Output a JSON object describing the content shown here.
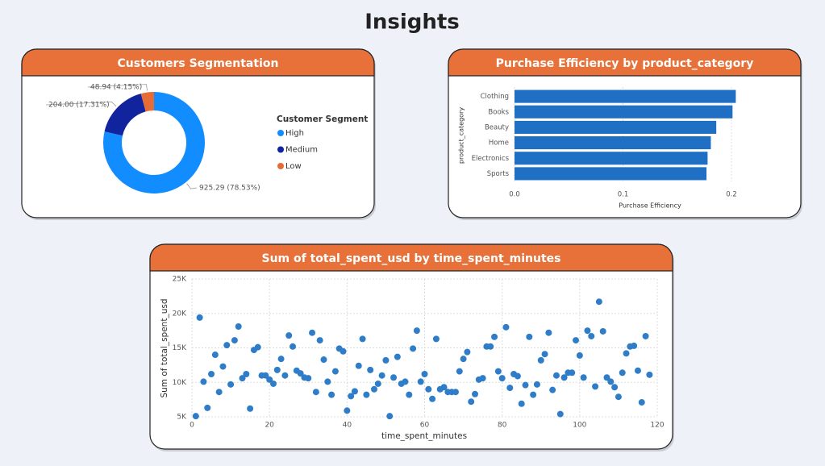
{
  "title": "Insights",
  "chart_data": [
    {
      "type": "pie",
      "title": "Customers Segmentation",
      "legend_title": "Customer Segment",
      "categories": [
        "High",
        "Medium",
        "Low"
      ],
      "values": [
        925.29,
        204.0,
        48.94
      ],
      "value_labels": [
        "925.29 (78.53%)",
        "204.00 (17.31%)",
        "48.94 (4.15%)"
      ],
      "colors": [
        "#118dff",
        "#12239e",
        "#e66c37"
      ],
      "donut": true,
      "legend": "right"
    },
    {
      "type": "bar",
      "orientation": "horizontal",
      "title": "Purchase Efficiency by product_category",
      "categories": [
        "Clothing",
        "Books",
        "Beauty",
        "Home",
        "Electronics",
        "Sports"
      ],
      "values": [
        0.204,
        0.201,
        0.186,
        0.181,
        0.178,
        0.177
      ],
      "color": "#1f6fc5",
      "xlim": [
        0,
        0.205
      ],
      "xticks": [
        {
          "value": 0,
          "label": "0.0"
        },
        0.1,
        0.2
      ],
      "x_label": "Purchase Efficiency",
      "y_label": "product_category",
      "grid": true
    },
    {
      "type": "scatter",
      "title": "Sum of total_spent_usd by time_spent_minutes",
      "x_label": "time_spent_minutes",
      "y_label": "Sum of total_spent_usd",
      "color": "#2f7dc8",
      "x": [
        1,
        2,
        3,
        4,
        5,
        6,
        7,
        8,
        9,
        10,
        11,
        12,
        13,
        14,
        15,
        16,
        17,
        18,
        19,
        20,
        21,
        22,
        23,
        24,
        25,
        26,
        27,
        28,
        29,
        30,
        31,
        32,
        33,
        34,
        35,
        36,
        37,
        38,
        39,
        40,
        41,
        42,
        43,
        44,
        45,
        46,
        47,
        48,
        49,
        50,
        51,
        52,
        53,
        54,
        55,
        56,
        57,
        58,
        59,
        60,
        61,
        62,
        63,
        64,
        65,
        66,
        67,
        68,
        69,
        70,
        71,
        72,
        73,
        74,
        75,
        76,
        77,
        78,
        79,
        80,
        81,
        82,
        83,
        84,
        85,
        86,
        87,
        88,
        89,
        90,
        91,
        92,
        93,
        94,
        95,
        96,
        97,
        98,
        99,
        100,
        101,
        102,
        103,
        104,
        105,
        106,
        107,
        108,
        109,
        110,
        111,
        112,
        113,
        114,
        115,
        116,
        117,
        118
      ],
      "values": [
        5100,
        19400,
        10100,
        6300,
        11200,
        14000,
        8600,
        12300,
        15400,
        9700,
        16100,
        18100,
        10600,
        11200,
        6200,
        14700,
        15100,
        11000,
        11000,
        10400,
        9800,
        11800,
        13400,
        11000,
        16800,
        15200,
        11700,
        11300,
        10700,
        10600,
        17200,
        8600,
        16100,
        13300,
        10100,
        8200,
        11600,
        14900,
        14500,
        5900,
        8000,
        8700,
        12400,
        16300,
        8200,
        11800,
        9000,
        9800,
        11000,
        13200,
        5100,
        10700,
        13700,
        9800,
        10100,
        8200,
        14900,
        17500,
        10100,
        11200,
        9000,
        7600,
        16300,
        9000,
        9300,
        8600,
        8600,
        8600,
        11600,
        13400,
        14400,
        7200,
        8300,
        10400,
        10600,
        15200,
        15200,
        16600,
        11600,
        10600,
        18000,
        9200,
        11200,
        10900,
        6900,
        9600,
        16600,
        8200,
        9700,
        13200,
        14100,
        17200,
        8900,
        11000,
        5400,
        10700,
        11400,
        11400,
        16100,
        13900,
        10700,
        17500,
        16700,
        9400,
        21700,
        17400,
        10700,
        10100,
        9300,
        7900,
        11400,
        14200,
        15200,
        15300,
        11700,
        7100,
        16700,
        11100
      ],
      "xlim": [
        0,
        120
      ],
      "xticks": [
        0,
        20,
        40,
        60,
        80,
        100,
        120
      ],
      "ylim": [
        5000,
        25000
      ],
      "yticks": [
        {
          "value": 5000,
          "label": "5K"
        },
        {
          "value": 10000,
          "label": "10K"
        },
        {
          "value": 15000,
          "label": "15K"
        },
        {
          "value": 20000,
          "label": "20K"
        },
        {
          "value": 25000,
          "label": "25K"
        }
      ],
      "grid": true
    }
  ]
}
